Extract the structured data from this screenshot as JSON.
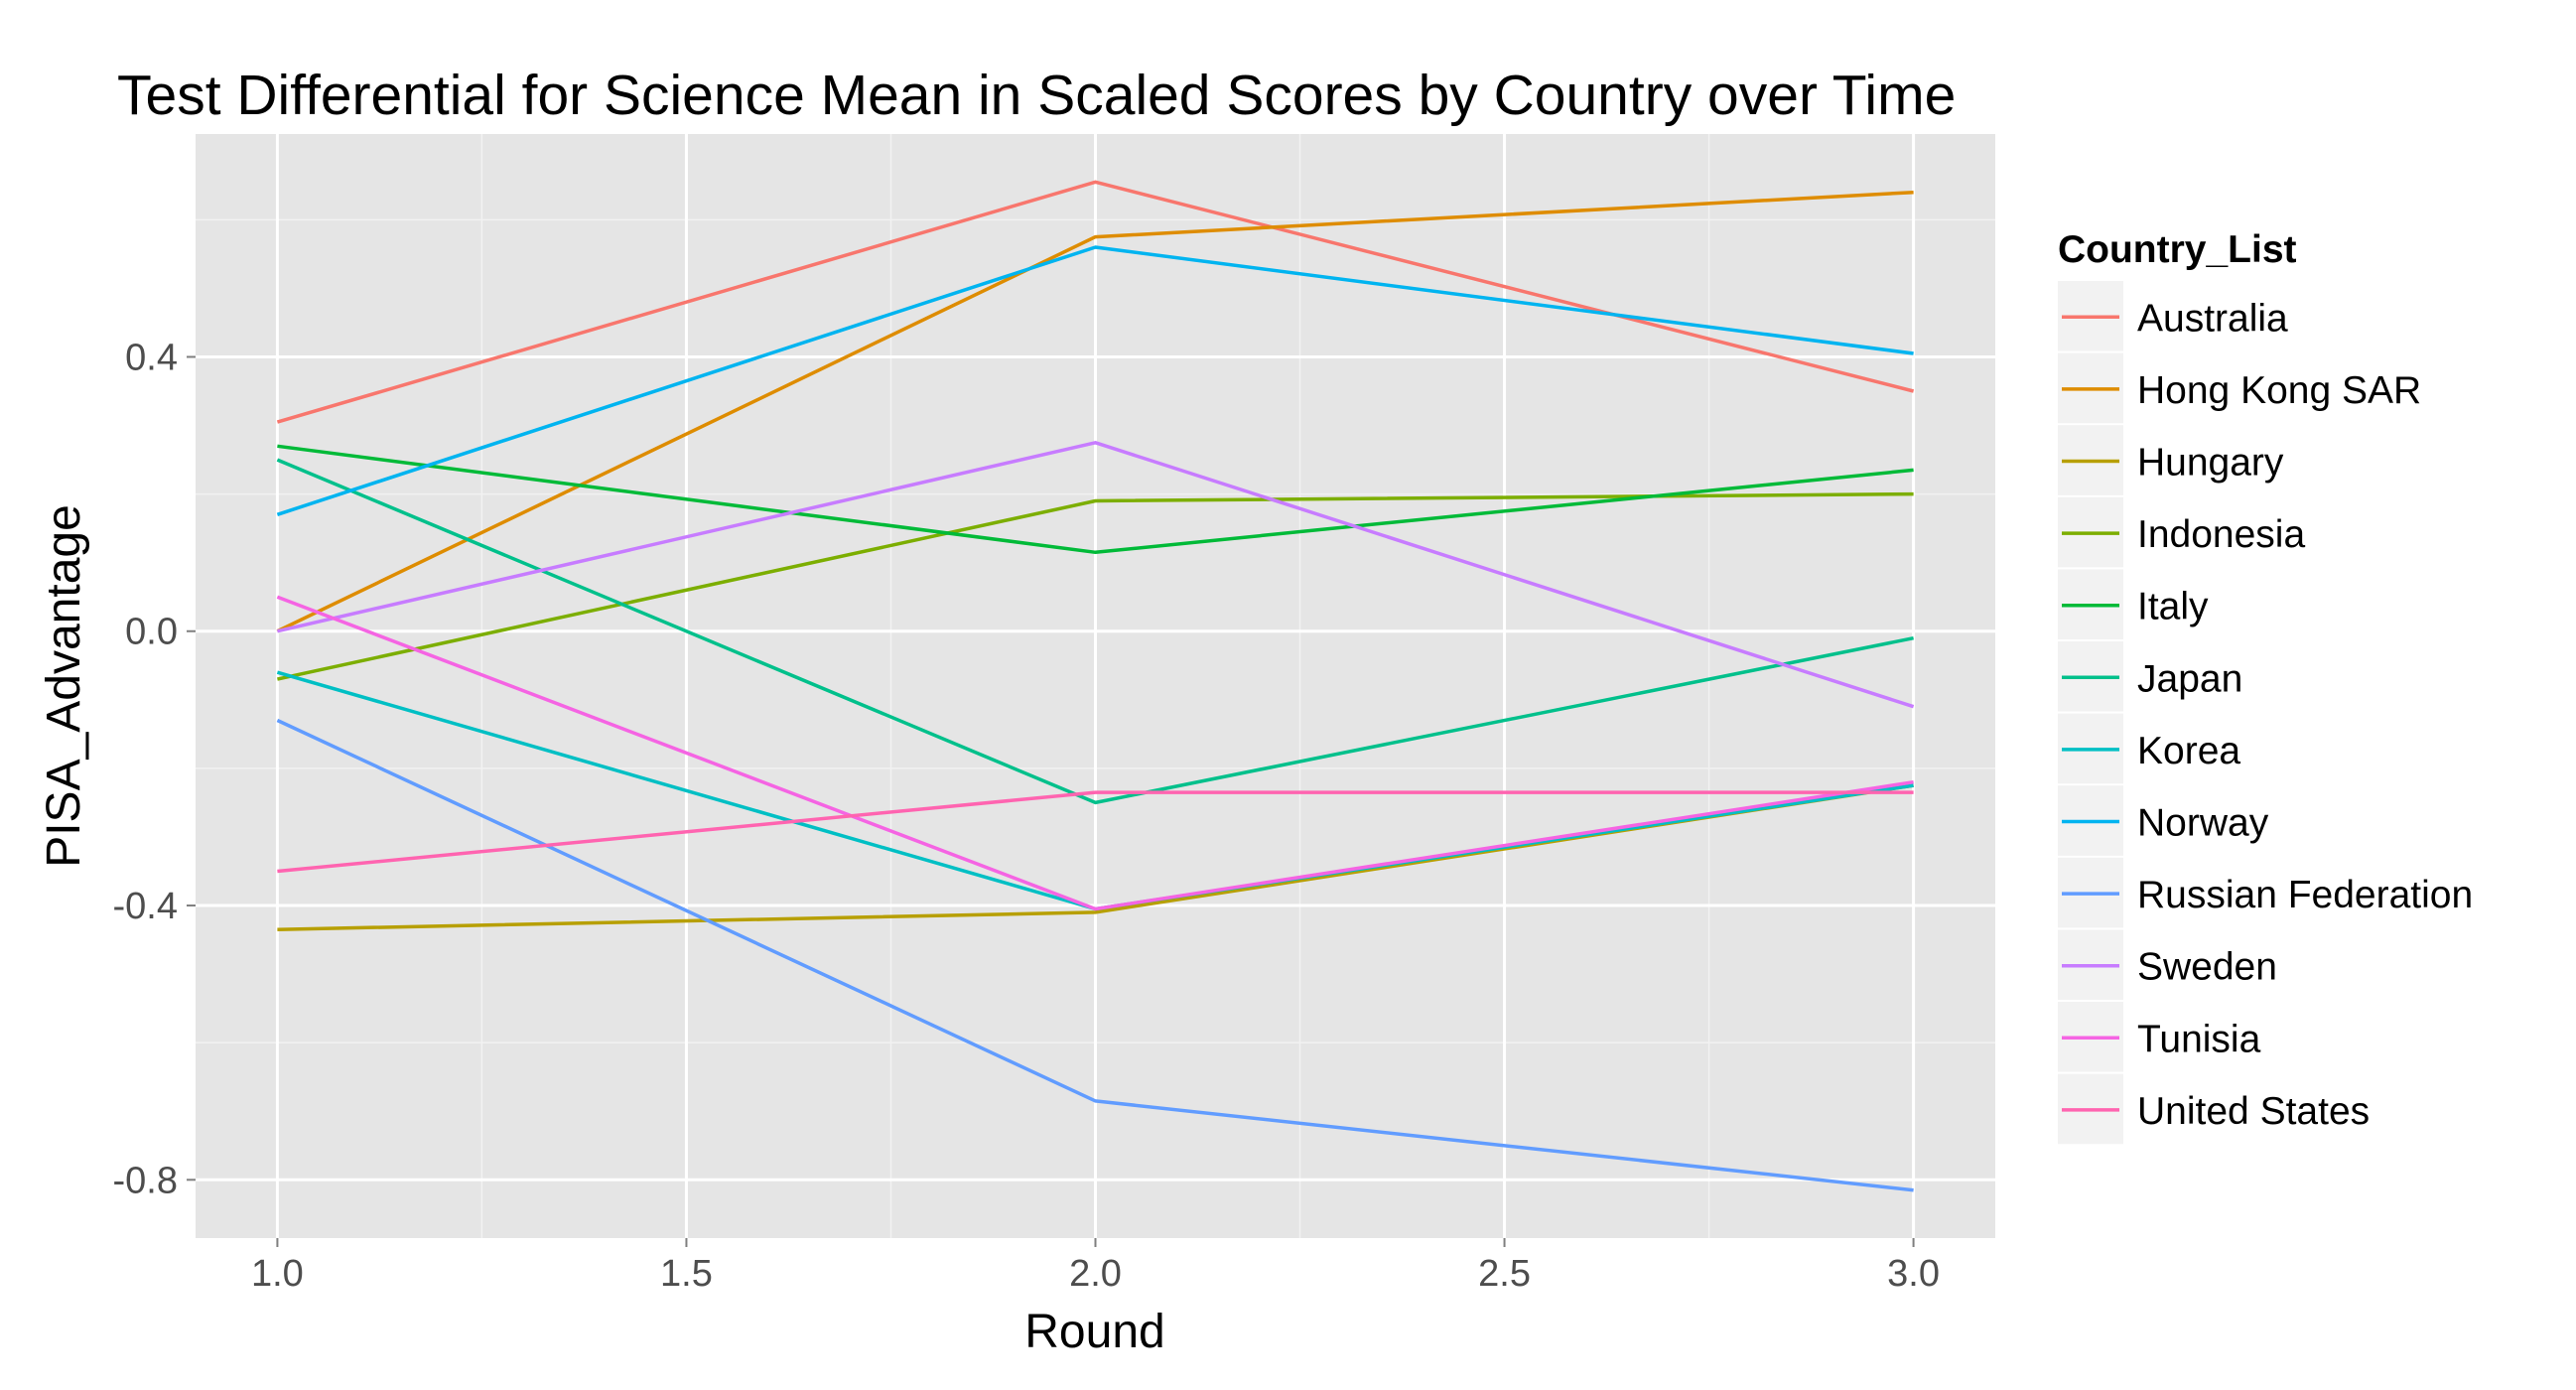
{
  "chart_data": {
    "type": "line",
    "title": "Test Differential for Science Mean in Scaled Scores by Country over Time",
    "xlabel": "Round",
    "ylabel": "PISA_Advantage",
    "xlim": [
      0.9,
      3.1
    ],
    "ylim": [
      -0.885,
      0.725
    ],
    "x_ticks": [
      1.0,
      1.5,
      2.0,
      2.5,
      3.0
    ],
    "x_tick_labels": [
      "1.0",
      "1.5",
      "2.0",
      "2.5",
      "3.0"
    ],
    "y_ticks": [
      -0.8,
      -0.4,
      0.0,
      0.4
    ],
    "y_tick_labels": [
      "-0.8",
      "-0.4",
      "0.0",
      "0.4"
    ],
    "grid": true,
    "legend_title": "Country_List",
    "legend_position": "right",
    "x": [
      1,
      2,
      3
    ],
    "series": [
      {
        "name": "Australia",
        "color": "#F8766D",
        "values": [
          0.305,
          0.655,
          0.35
        ]
      },
      {
        "name": "Hong Kong SAR",
        "color": "#DE8C00",
        "values": [
          0.0,
          0.575,
          0.64
        ]
      },
      {
        "name": "Hungary",
        "color": "#B79F00",
        "values": [
          -0.435,
          -0.41,
          -0.225
        ]
      },
      {
        "name": "Indonesia",
        "color": "#7CAE00",
        "values": [
          -0.07,
          0.19,
          0.2
        ]
      },
      {
        "name": "Italy",
        "color": "#00BA38",
        "values": [
          0.27,
          0.115,
          0.235
        ]
      },
      {
        "name": "Japan",
        "color": "#00C08B",
        "values": [
          0.25,
          -0.25,
          -0.01
        ]
      },
      {
        "name": "Korea",
        "color": "#00BFC4",
        "values": [
          -0.06,
          -0.405,
          -0.225
        ]
      },
      {
        "name": "Norway",
        "color": "#00B4F0",
        "values": [
          0.17,
          0.56,
          0.405
        ]
      },
      {
        "name": "Russian Federation",
        "color": "#619CFF",
        "values": [
          -0.13,
          -0.685,
          -0.815
        ]
      },
      {
        "name": "Sweden",
        "color": "#C77CFF",
        "values": [
          0.0,
          0.275,
          -0.11
        ]
      },
      {
        "name": "Tunisia",
        "color": "#F564E3",
        "values": [
          0.05,
          -0.405,
          -0.22
        ]
      },
      {
        "name": "United States",
        "color": "#FF64B0",
        "values": [
          -0.35,
          -0.235,
          -0.235
        ]
      }
    ]
  }
}
